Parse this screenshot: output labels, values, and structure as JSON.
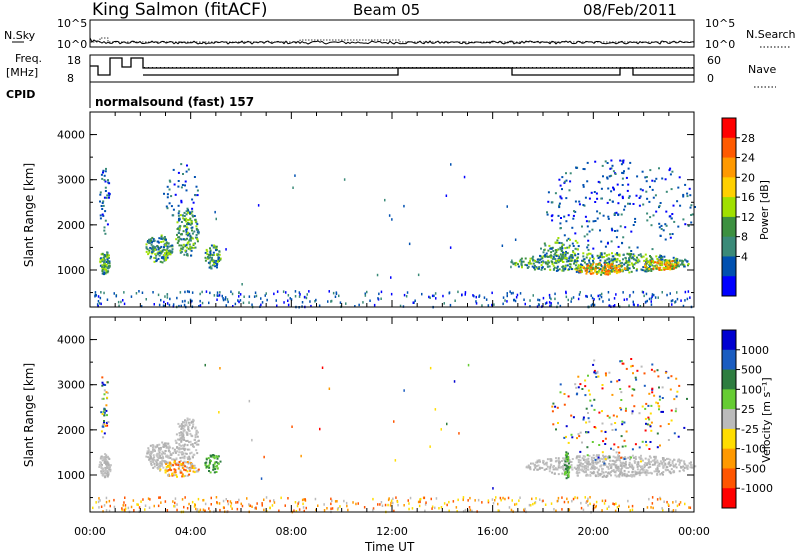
{
  "header": {
    "station": "King Salmon (fitACF)",
    "beam": "Beam 05",
    "date": "08/Feb/2011"
  },
  "top_panels": {
    "nsky_label": "N.Sky",
    "nsearch_label": "N.Search",
    "nsky_ticks": [
      "10^5",
      "10^0"
    ],
    "nsearch_ticks": [
      "10^5",
      "10^0"
    ],
    "freq_label_1": "Freq.",
    "freq_label_2": "[MHz]",
    "freq_ticks": [
      "18",
      "8"
    ],
    "nave_label": "Nave",
    "nave_ticks": [
      "60",
      "0"
    ],
    "cpid_label": "CPID",
    "cpid_value": "normalsound (fast) 157"
  },
  "chart_data": [
    {
      "type": "heatmap",
      "name": "power-panel",
      "ylabel": "Slant Range [km]",
      "y_ticks": [
        1000,
        2000,
        3000,
        4000
      ],
      "ylim": [
        180,
        4500
      ],
      "xlim_hours": [
        0,
        24
      ],
      "colorbar": {
        "label": "Power [dB]",
        "ticks": [
          "28",
          "24",
          "20",
          "16",
          "12",
          "8",
          "4"
        ],
        "colors": [
          "#ff0000",
          "#ff5a00",
          "#ff9900",
          "#ffd000",
          "#a0e000",
          "#3c9040",
          "#3a8a78",
          "#0050b0",
          "#0000ff"
        ]
      }
    },
    {
      "type": "heatmap",
      "name": "velocity-panel",
      "ylabel": "Slant Range [km]",
      "y_ticks": [
        1000,
        2000,
        3000,
        4000
      ],
      "ylim": [
        180,
        4500
      ],
      "xlim_hours": [
        0,
        24
      ],
      "colorbar": {
        "label": "Velocity  [m s⁻¹]",
        "ticks": [
          "1000",
          "500",
          "100",
          "25",
          "-25",
          "-100",
          "-500",
          "-1000"
        ],
        "colors": [
          "#0000d0",
          "#1a5cc0",
          "#2e7d40",
          "#66cc33",
          "#bbbbbb",
          "#ffdd00",
          "#ff9900",
          "#ff5500",
          "#ff0000"
        ]
      }
    }
  ],
  "x_axis": {
    "tick_labels": [
      "00:00",
      "04:00",
      "08:00",
      "12:00",
      "16:00",
      "20:00",
      "00:00"
    ],
    "label": "Time UT"
  }
}
